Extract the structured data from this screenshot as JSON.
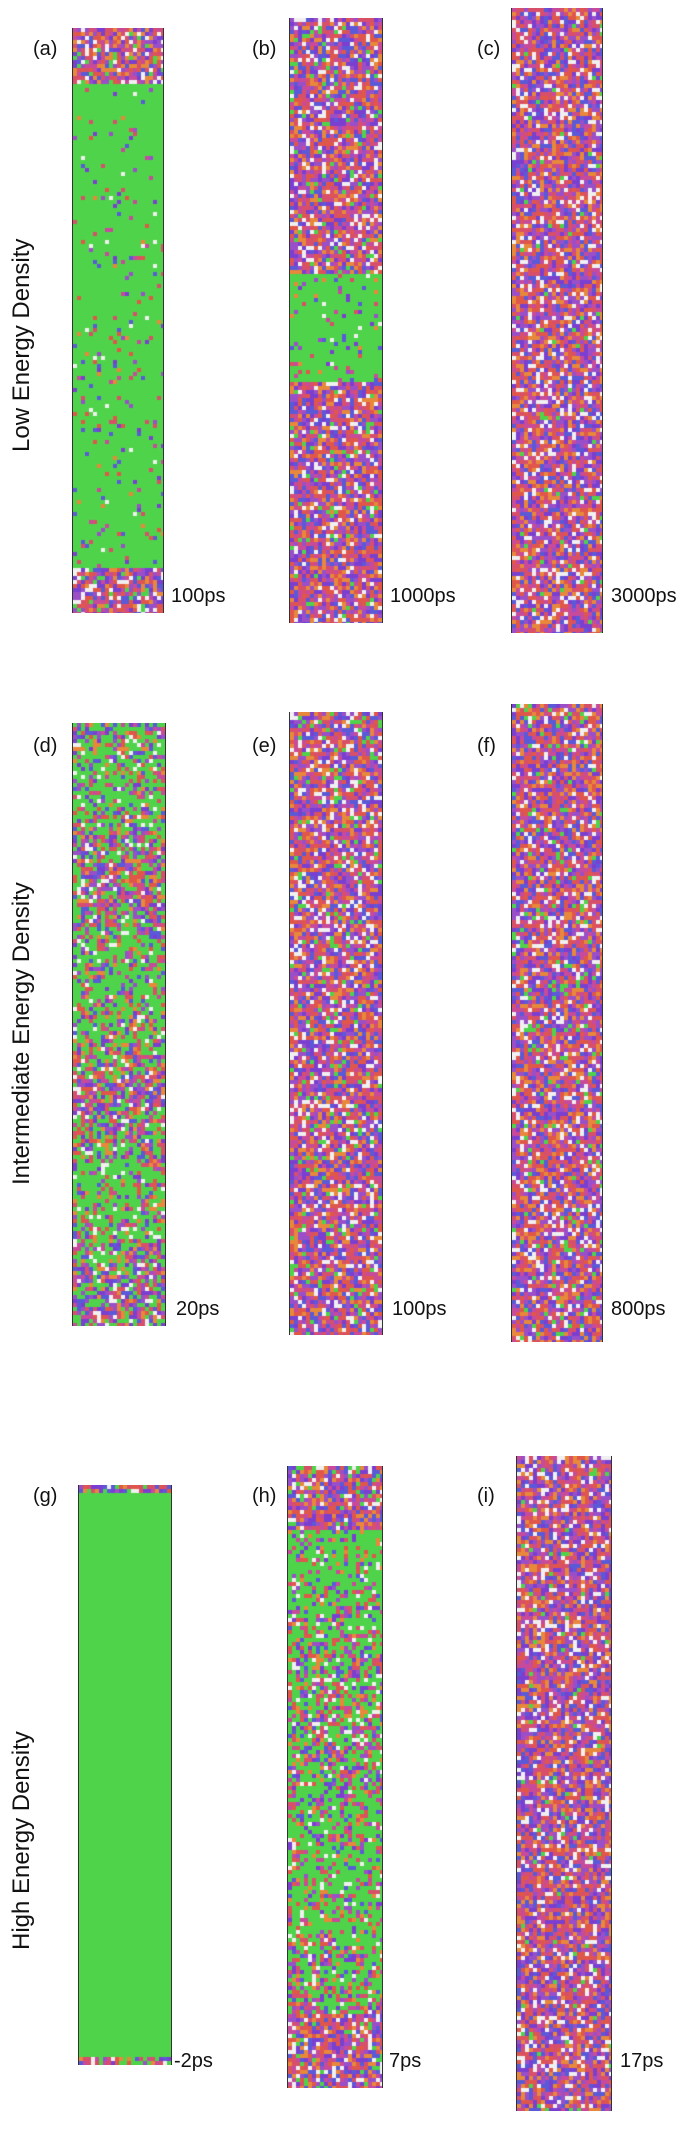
{
  "rows": [
    {
      "label": "Low Energy Density",
      "panels": [
        {
          "letter": "(a)",
          "time": "100ps"
        },
        {
          "letter": "(b)",
          "time": "1000ps"
        },
        {
          "letter": "(c)",
          "time": "3000ps"
        }
      ]
    },
    {
      "label": "Intermediate Energy Density",
      "panels": [
        {
          "letter": "(d)",
          "time": "20ps"
        },
        {
          "letter": "(e)",
          "time": "100ps"
        },
        {
          "letter": "(f)",
          "time": "800ps"
        }
      ]
    },
    {
      "label": "High Energy Density",
      "panels": [
        {
          "letter": "(g)",
          "time": "-2ps"
        },
        {
          "letter": "(h)",
          "time": "7ps"
        },
        {
          "letter": "(i)",
          "time": "17ps"
        }
      ]
    }
  ],
  "colors": {
    "crystalline": "#4fd34a",
    "disordered": [
      "#e0574a",
      "#7a3fd0",
      "#c84a9a",
      "#e8883a",
      "#5a5ad8",
      "#f0f0f0",
      "#d84f6a",
      "#9a4fc8"
    ]
  }
}
